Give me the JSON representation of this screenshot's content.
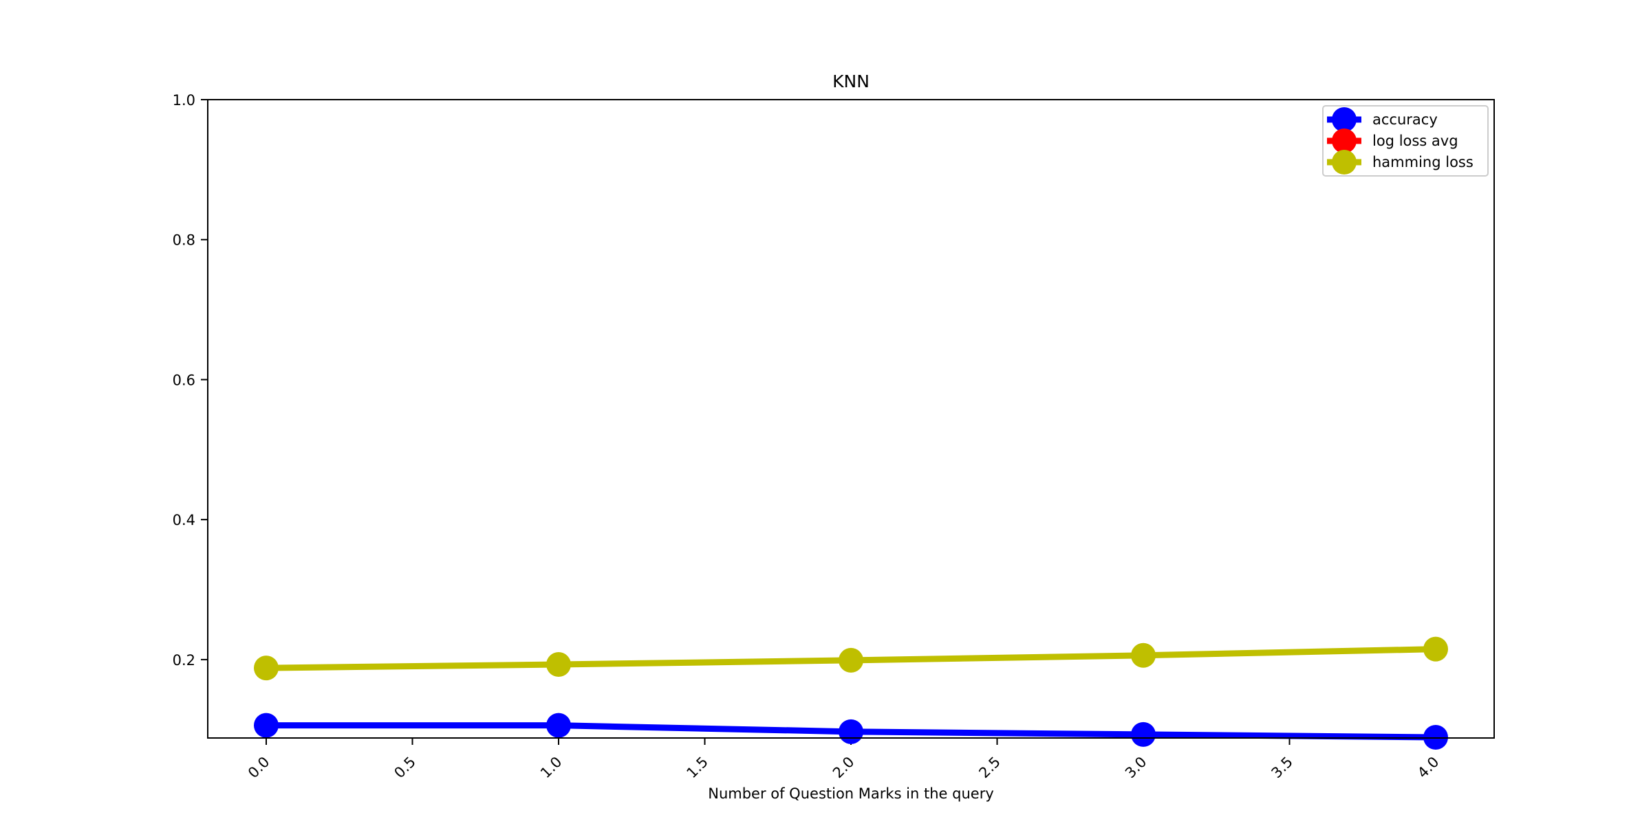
{
  "chart_data": {
    "type": "line",
    "title": "KNN",
    "xlabel": "Number of Question Marks in the query",
    "ylabel": "",
    "xlim": [
      -0.2,
      4.2
    ],
    "ylim": [
      0.088,
      1.0
    ],
    "xticks": [
      0.0,
      0.5,
      1.0,
      1.5,
      2.0,
      2.5,
      3.0,
      3.5,
      4.0
    ],
    "xtick_labels": [
      "0.0",
      "0.5",
      "1.0",
      "1.5",
      "2.0",
      "2.5",
      "3.0",
      "3.5",
      "4.0"
    ],
    "yticks": [
      0.2,
      0.4,
      0.6,
      0.8,
      1.0
    ],
    "ytick_labels": [
      "0.2",
      "0.4",
      "0.6",
      "0.8",
      "1.0"
    ],
    "x": [
      0,
      1,
      2,
      3,
      4
    ],
    "grid": false,
    "legend_position": "top-right",
    "series": [
      {
        "name": "accuracy",
        "color": "#0000ff",
        "values": [
          0.106,
          0.106,
          0.097,
          0.093,
          0.089
        ]
      },
      {
        "name": "log loss avg",
        "color": "#ff0000",
        "values": [
          null,
          null,
          null,
          null,
          null
        ]
      },
      {
        "name": "hamming loss",
        "color": "#bfbf00",
        "values": [
          0.188,
          0.193,
          0.199,
          0.206,
          0.215
        ]
      }
    ]
  }
}
